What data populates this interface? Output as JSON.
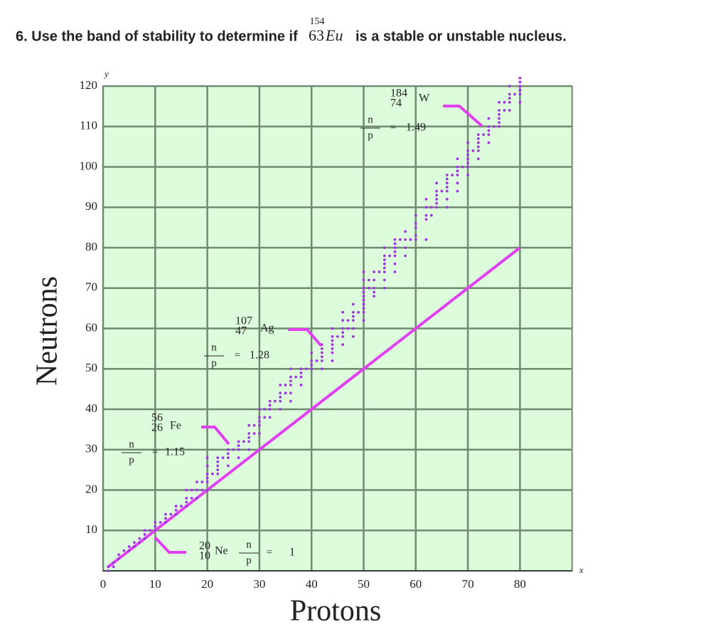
{
  "question": {
    "prefix": "6. Use the band of stability to determine if",
    "mass": "154",
    "atomic": "63",
    "symbol": "Eu",
    "suffix": "is a stable or unstable nucleus."
  },
  "chart_data": {
    "type": "scatter",
    "x_label": "Protons",
    "y_label": "Neutrons",
    "x_axis_name": "x",
    "y_axis_name": "y",
    "xlim": [
      0,
      90
    ],
    "ylim": [
      0,
      120
    ],
    "xticks": [
      0,
      10,
      20,
      30,
      40,
      50,
      60,
      70,
      80
    ],
    "yticks": [
      10,
      20,
      30,
      40,
      50,
      60,
      70,
      80,
      90,
      100,
      110,
      120
    ],
    "grid": true,
    "point_color": "#a035e6",
    "line_color": "#e040f0",
    "points": {
      "x": [
        1,
        1,
        2,
        2,
        3,
        3,
        4,
        5,
        5,
        6,
        6,
        7,
        7,
        8,
        8,
        8,
        9,
        10,
        10,
        10,
        11,
        12,
        12,
        12,
        13,
        14,
        14,
        14,
        15,
        16,
        16,
        16,
        16,
        17,
        17,
        18,
        18,
        18,
        19,
        19,
        20,
        20,
        20,
        20,
        20,
        20,
        21,
        22,
        22,
        22,
        22,
        22,
        23,
        24,
        24,
        24,
        24,
        25,
        26,
        26,
        26,
        26,
        27,
        28,
        28,
        28,
        28,
        28,
        29,
        29,
        30,
        30,
        30,
        30,
        30,
        31,
        31,
        32,
        32,
        32,
        32,
        33,
        34,
        34,
        34,
        34,
        34,
        35,
        35,
        36,
        36,
        36,
        36,
        36,
        36,
        37,
        38,
        38,
        38,
        38,
        39,
        40,
        40,
        40,
        40,
        41,
        42,
        42,
        42,
        42,
        42,
        42,
        44,
        44,
        44,
        44,
        44,
        44,
        44,
        45,
        46,
        46,
        46,
        46,
        46,
        46,
        47,
        47,
        48,
        48,
        48,
        48,
        48,
        48,
        49,
        50,
        50,
        50,
        50,
        50,
        50,
        50,
        50,
        50,
        50,
        51,
        51,
        52,
        52,
        52,
        52,
        52,
        53,
        54,
        54,
        54,
        54,
        54,
        54,
        54,
        54,
        55,
        56,
        56,
        56,
        56,
        56,
        56,
        56,
        57,
        58,
        58,
        58,
        58,
        59,
        60,
        60,
        60,
        60,
        60,
        62,
        62,
        62,
        62,
        62,
        63,
        63,
        64,
        64,
        64,
        64,
        64,
        64,
        65,
        66,
        66,
        66,
        66,
        66,
        66,
        66,
        67,
        68,
        68,
        68,
        68,
        68,
        68,
        69,
        70,
        70,
        70,
        70,
        70,
        70,
        70,
        71,
        72,
        72,
        72,
        72,
        72,
        72,
        73,
        74,
        74,
        74,
        74,
        74,
        75,
        76,
        76,
        76,
        76,
        76,
        76,
        77,
        77,
        78,
        78,
        78,
        78,
        78,
        79,
        80,
        80,
        80,
        80,
        80,
        80
      ],
      "y": [
        0,
        1,
        1,
        2,
        3,
        4,
        5,
        5,
        6,
        6,
        7,
        7,
        8,
        8,
        9,
        10,
        10,
        10,
        11,
        12,
        12,
        12,
        13,
        14,
        14,
        14,
        15,
        16,
        16,
        16,
        17,
        18,
        20,
        18,
        20,
        18,
        20,
        22,
        20,
        22,
        20,
        22,
        23,
        24,
        26,
        28,
        24,
        24,
        25,
        26,
        27,
        28,
        28,
        26,
        28,
        29,
        30,
        30,
        28,
        30,
        31,
        32,
        32,
        30,
        32,
        33,
        34,
        36,
        34,
        36,
        34,
        36,
        37,
        38,
        40,
        38,
        40,
        38,
        40,
        41,
        42,
        42,
        40,
        42,
        43,
        44,
        46,
        44,
        46,
        42,
        44,
        46,
        47,
        48,
        50,
        48,
        46,
        48,
        49,
        50,
        50,
        50,
        51,
        52,
        54,
        52,
        50,
        52,
        53,
        54,
        55,
        56,
        52,
        54,
        55,
        56,
        57,
        58,
        60,
        58,
        56,
        58,
        59,
        60,
        62,
        64,
        60,
        62,
        58,
        60,
        62,
        63,
        64,
        66,
        64,
        62,
        64,
        65,
        66,
        67,
        68,
        69,
        70,
        72,
        74,
        70,
        72,
        68,
        69,
        70,
        72,
        74,
        74,
        70,
        72,
        74,
        75,
        76,
        77,
        78,
        80,
        78,
        74,
        76,
        78,
        79,
        80,
        81,
        82,
        82,
        78,
        80,
        82,
        84,
        82,
        82,
        83,
        85,
        86,
        88,
        82,
        87,
        88,
        90,
        92,
        88,
        90,
        90,
        91,
        92,
        93,
        94,
        96,
        94,
        90,
        92,
        94,
        95,
        96,
        97,
        98,
        98,
        94,
        96,
        98,
        99,
        100,
        102,
        100,
        98,
        100,
        101,
        102,
        103,
        104,
        106,
        104,
        102,
        104,
        105,
        106,
        107,
        108,
        108,
        106,
        108,
        109,
        110,
        112,
        110,
        110,
        111,
        112,
        113,
        114,
        116,
        114,
        116,
        114,
        116,
        117,
        118,
        120,
        118,
        116,
        118,
        119,
        120,
        121,
        122
      ]
    },
    "reference_line": {
      "x": [
        1,
        80
      ],
      "y": [
        1,
        80
      ]
    },
    "ratio_symbols": {
      "n": "n",
      "p": "p",
      "eq": "="
    },
    "annotations": [
      {
        "mass": "20",
        "atomic": "10",
        "symbol": "Ne",
        "ratio": 1
      },
      {
        "mass": "56",
        "atomic": "26",
        "symbol": "Fe",
        "ratio": 1.15
      },
      {
        "mass": "107",
        "atomic": "47",
        "symbol": "Ag",
        "ratio": 1.28
      },
      {
        "mass": "184",
        "atomic": "74",
        "symbol": "W",
        "ratio": 1.49
      }
    ]
  }
}
